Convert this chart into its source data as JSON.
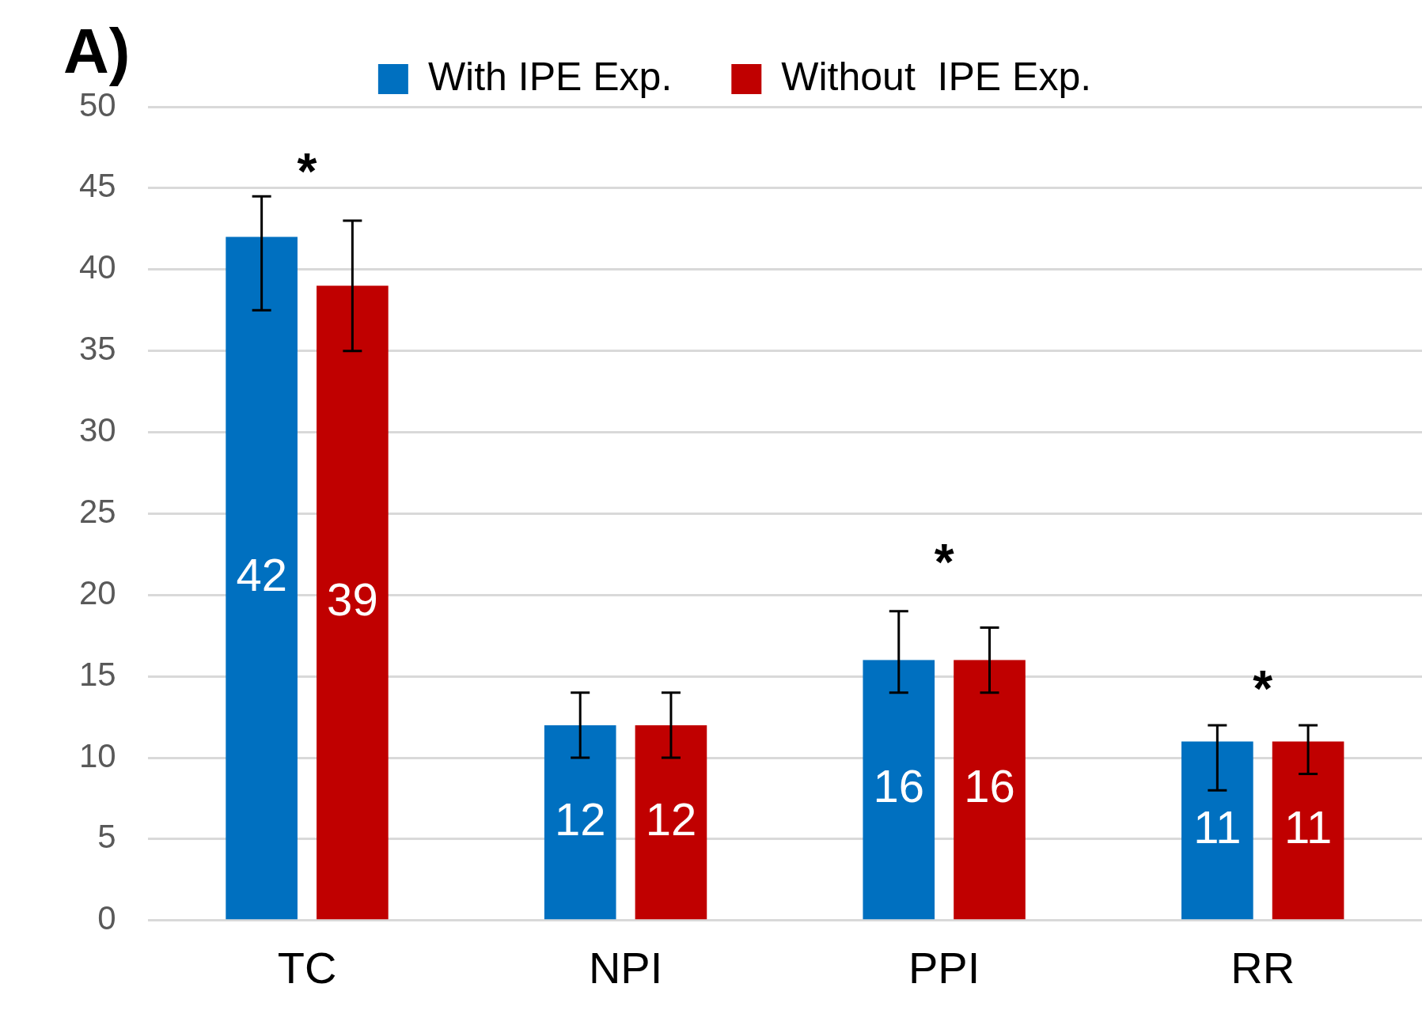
{
  "chart_data": {
    "type": "bar",
    "categories": [
      "TC",
      "NPI",
      "PPI",
      "RR"
    ],
    "series": [
      {
        "name": "With IPE Exp.",
        "color": "#0070c0",
        "values": [
          42,
          12,
          16,
          11
        ],
        "errors": [
          [
            37.5,
            44.5
          ],
          [
            10,
            14
          ],
          [
            14,
            19
          ],
          [
            8,
            12
          ]
        ]
      },
      {
        "name": "Without  IPE Exp.",
        "color": "#c00000",
        "values": [
          39,
          12,
          16,
          11
        ],
        "errors": [
          [
            35,
            43
          ],
          [
            10,
            14
          ],
          [
            14,
            18
          ],
          [
            9,
            12
          ]
        ]
      }
    ],
    "ylim": [
      0,
      50
    ],
    "yticks": [
      0,
      5,
      10,
      15,
      20,
      25,
      30,
      35,
      40,
      45,
      50
    ],
    "grid": "y",
    "legend": "top",
    "data_labels": true,
    "annotations": [
      "A)",
      "*",
      "*",
      "*"
    ]
  }
}
